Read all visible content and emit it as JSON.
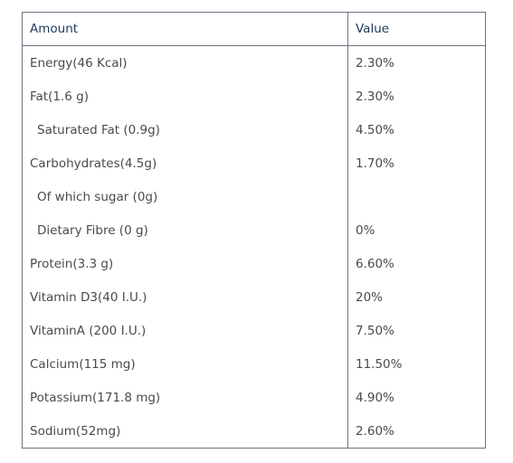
{
  "table": {
    "headers": {
      "amount": "Amount",
      "value": "Value"
    },
    "rows": [
      {
        "amount": "Energy(46 Kcal)",
        "value": "2.30%"
      },
      {
        "amount": "Fat(1.6 g)",
        "value": "2.30%"
      },
      {
        "amount": "Saturated Fat (0.9g)",
        "value": "4.50%"
      },
      {
        "amount": "Carbohydrates(4.5g)",
        "value": "1.70%"
      },
      {
        "amount": "Of which sugar (0g)",
        "value": ""
      },
      {
        "amount": "Dietary Fibre (0 g)",
        "value": "0%"
      },
      {
        "amount": "Protein(3.3 g)",
        "value": "6.60%"
      },
      {
        "amount": "Vitamin D3(40 I.U.)",
        "value": "20%"
      },
      {
        "amount": "VitaminA (200 I.U.)",
        "value": "7.50%"
      },
      {
        "amount": "Calcium(115 mg)",
        "value": "11.50%"
      },
      {
        "amount": "Potassium(171.8 mg)",
        "value": "4.90%"
      },
      {
        "amount": "Sodium(52mg)",
        "value": "2.60%"
      }
    ]
  }
}
